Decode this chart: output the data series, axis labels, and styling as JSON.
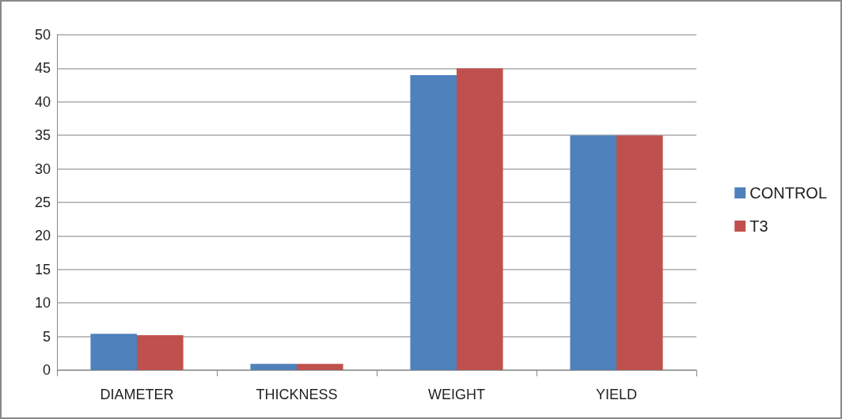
{
  "chart_data": {
    "type": "bar",
    "categories": [
      "DIAMETER",
      "THICKNESS",
      "WEIGHT",
      "YIELD"
    ],
    "series": [
      {
        "name": "CONTROL",
        "color": "#4f81bd",
        "values": [
          5.4,
          0.9,
          44,
          35
        ]
      },
      {
        "name": "T3",
        "color": "#c0504d",
        "values": [
          5.2,
          0.9,
          45,
          35
        ]
      }
    ],
    "ylim": [
      0,
      50
    ],
    "yticks": [
      0,
      5,
      10,
      15,
      20,
      25,
      30,
      35,
      40,
      45,
      50
    ],
    "grid": "y",
    "legend": "right"
  }
}
